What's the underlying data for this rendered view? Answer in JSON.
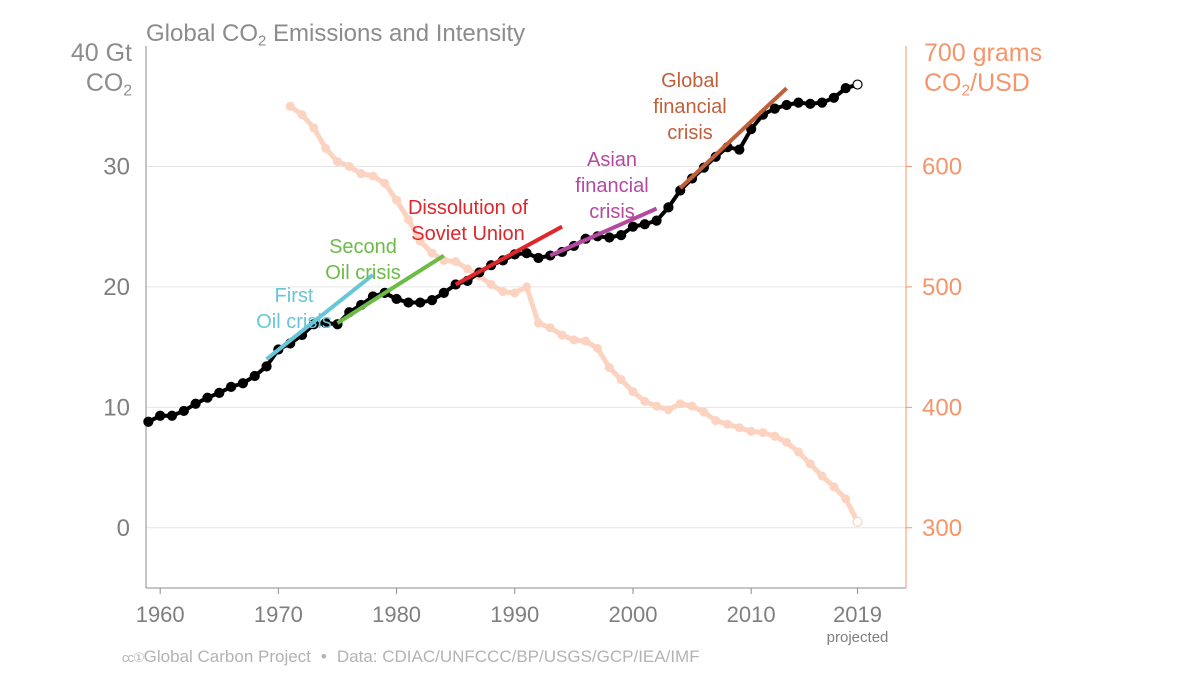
{
  "title": {
    "main": "Global CO",
    "sub": "2",
    "rest": " Emissions and Intensity"
  },
  "left_unit": {
    "line1": "40 Gt",
    "line2": "CO",
    "sub": "2"
  },
  "right_unit": {
    "line1": "700 grams",
    "line2": "CO",
    "sub": "2",
    "rest": "/USD"
  },
  "colors": {
    "emissions": "#000000",
    "intensity": "#fcd3c0",
    "right_axis": "#f4956b",
    "first_oil": "#67c6d8",
    "second_oil": "#6cbb46",
    "soviet": "#e0262b",
    "asian": "#b44aa0",
    "global_fin": "#c0603a"
  },
  "footer": {
    "logo": "cc①",
    "project": "Global Carbon Project",
    "separator": "•",
    "source": "Data: CDIAC/UNFCCC/BP/USGS/GCP/IEA/IMF"
  },
  "chart_data": {
    "type": "line",
    "title": "Global CO2 Emissions and Intensity",
    "x_ticks": [
      "1960",
      "1970",
      "1980",
      "1990",
      "2000",
      "2010",
      "2019"
    ],
    "x_tick_note": "projected",
    "xlim": [
      1958.8,
      2019
    ],
    "y_left": {
      "label": "40 Gt CO2",
      "ticks": [
        "0",
        "10",
        "20",
        "30"
      ],
      "ylim": [
        -5,
        40
      ]
    },
    "y_right": {
      "label": "700 grams CO2/USD",
      "ticks": [
        "300",
        "400",
        "500",
        "600"
      ],
      "ylim": [
        250,
        700
      ]
    },
    "grid": true,
    "series": [
      {
        "name": "Global CO2 Emissions",
        "axis": "left",
        "x": [
          1959,
          1960,
          1961,
          1962,
          1963,
          1964,
          1965,
          1966,
          1967,
          1968,
          1969,
          1970,
          1971,
          1972,
          1973,
          1974,
          1975,
          1976,
          1977,
          1978,
          1979,
          1980,
          1981,
          1982,
          1983,
          1984,
          1985,
          1986,
          1987,
          1988,
          1989,
          1990,
          1991,
          1992,
          1993,
          1994,
          1995,
          1996,
          1997,
          1998,
          1999,
          2000,
          2001,
          2002,
          2003,
          2004,
          2005,
          2006,
          2007,
          2008,
          2009,
          2010,
          2011,
          2012,
          2013,
          2014,
          2015,
          2016,
          2017,
          2018,
          2019
        ],
        "values": [
          8.8,
          9.3,
          9.3,
          9.7,
          10.3,
          10.8,
          11.2,
          11.7,
          12.0,
          12.6,
          13.4,
          14.8,
          15.3,
          16.0,
          16.9,
          17.0,
          16.9,
          17.9,
          18.5,
          19.2,
          19.5,
          19.0,
          18.7,
          18.7,
          18.9,
          19.5,
          20.2,
          20.5,
          21.2,
          21.8,
          22.2,
          22.7,
          22.8,
          22.4,
          22.6,
          22.9,
          23.4,
          24.0,
          24.2,
          24.1,
          24.3,
          25.0,
          25.2,
          25.5,
          26.6,
          28.0,
          29.0,
          29.9,
          30.8,
          31.6,
          31.4,
          33.1,
          34.3,
          34.8,
          35.1,
          35.3,
          35.2,
          35.3,
          35.7,
          36.5,
          36.8
        ]
      },
      {
        "name": "CO2 Intensity",
        "axis": "right",
        "x": [
          1971,
          1972,
          1973,
          1974,
          1975,
          1976,
          1977,
          1978,
          1979,
          1980,
          1981,
          1982,
          1983,
          1984,
          1985,
          1986,
          1987,
          1988,
          1989,
          1990,
          1991,
          1992,
          1993,
          1994,
          1995,
          1996,
          1997,
          1998,
          1999,
          2000,
          2001,
          2002,
          2003,
          2004,
          2005,
          2006,
          2007,
          2008,
          2009,
          2010,
          2011,
          2012,
          2013,
          2014,
          2015,
          2016,
          2017,
          2018,
          2019
        ],
        "values": [
          650,
          643,
          632,
          615,
          604,
          600,
          594,
          592,
          586,
          572,
          556,
          538,
          528,
          522,
          521,
          515,
          509,
          502,
          496,
          495,
          500,
          470,
          466,
          460,
          456,
          455,
          449,
          433,
          423,
          413,
          405,
          401,
          398,
          403,
          401,
          396,
          389,
          386,
          383,
          380,
          379,
          376,
          371,
          363,
          353,
          343,
          334,
          324,
          305
        ]
      }
    ],
    "annotations": [
      {
        "text": [
          "First",
          "Oil crisis"
        ],
        "color": "first_oil",
        "trend": [
          [
            1969,
            14.0
          ],
          [
            1978,
            21.0
          ]
        ]
      },
      {
        "text": [
          "Second",
          "Oil crisis"
        ],
        "color": "second_oil",
        "trend": [
          [
            1975,
            17.0
          ],
          [
            1984,
            22.6
          ]
        ]
      },
      {
        "text": [
          "Dissolution of",
          "Soviet Union"
        ],
        "color": "soviet",
        "trend": [
          [
            1985,
            20.2
          ],
          [
            1994,
            25.0
          ]
        ]
      },
      {
        "text": [
          "Asian",
          "financial",
          "crisis"
        ],
        "color": "asian",
        "trend": [
          [
            1993,
            22.6
          ],
          [
            2002,
            26.5
          ]
        ]
      },
      {
        "text": [
          "Global",
          "financial",
          "crisis"
        ],
        "color": "global_fin",
        "trend": [
          [
            2004,
            28.2
          ],
          [
            2013,
            36.5
          ]
        ]
      }
    ]
  }
}
